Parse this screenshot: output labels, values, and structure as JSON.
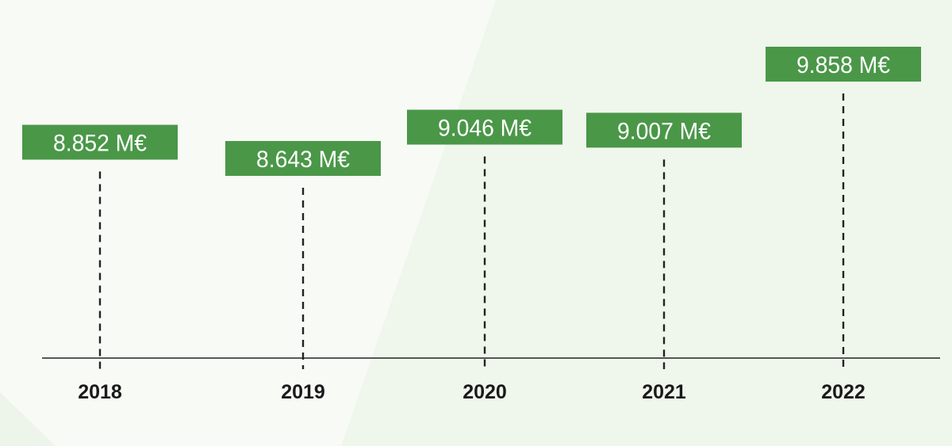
{
  "chart_data": {
    "type": "bar",
    "categories": [
      "2018",
      "2019",
      "2020",
      "2021",
      "2022"
    ],
    "values": [
      8.852,
      8.643,
      9.046,
      9.007,
      9.858
    ],
    "value_labels": [
      "8.852 M€",
      "8.643 M€",
      "9.046 M€",
      "9.007 M€",
      "9.858 M€"
    ],
    "unit": "M€",
    "title": "",
    "xlabel": "",
    "ylabel": "",
    "grid": false,
    "legend": "none"
  },
  "colors": {
    "accent": "#4a9748",
    "text": "#1a1a1a",
    "background": "#f8faf6",
    "background_shape": "#eff6ec"
  }
}
